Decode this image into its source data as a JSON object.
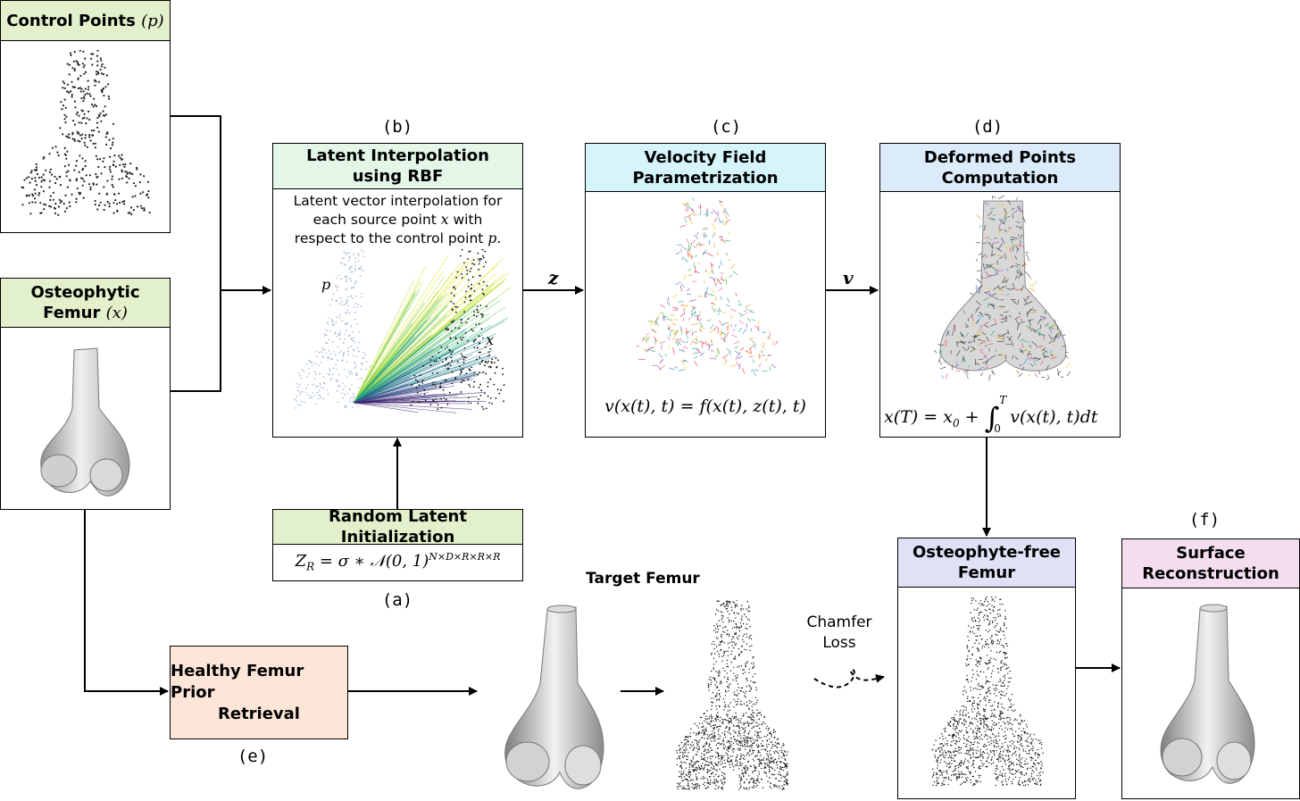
{
  "boxes": {
    "control_points": {
      "title": "Control Points",
      "symbol": "(p)"
    },
    "osteophytic_femur": {
      "title_line1": "Osteophytic",
      "title_line2": "Femur",
      "symbol": "(x)"
    },
    "latent_interp": {
      "title_line1": "Latent Interpolation",
      "title_line2": "using RBF",
      "desc_line1": "Latent vector interpolation for",
      "desc_line2a": "each source point",
      "desc_line2_sym": "x",
      "desc_line2b": "with",
      "desc_line3a": "respect to the control point",
      "desc_line3_sym": "p.",
      "label_p": "p",
      "label_x": "x"
    },
    "velocity": {
      "title_line1": "Velocity Field",
      "title_line2": "Parametrization",
      "equation": "v(x(t), t) = f(x(t), z(t), t)"
    },
    "deformed": {
      "title_line1": "Deformed Points",
      "title_line2": "Computation",
      "equation_lhs": "x(T) = x",
      "equation_sub": "0",
      "equation_plus": " + ",
      "integral_upper": "T",
      "integral_lower": "0",
      "equation_rhs": "v(x(t), t)dt"
    },
    "random_latent": {
      "title": "Random Latent Initialization",
      "equation_base": "Z",
      "equation_sub": "R",
      "equation_mid": " = σ ∗ 𝒩(0, 1)",
      "equation_sup": "N×D×R×R×R"
    },
    "prior": {
      "title_line1": "Healthy Femur Prior",
      "title_line2": "Retrieval"
    },
    "osteo_free": {
      "title_line1": "Osteophyte-free",
      "title_line2": "Femur"
    },
    "surface": {
      "title_line1": "Surface",
      "title_line2": "Reconstruction"
    }
  },
  "step_labels": {
    "a": "(a)",
    "b": "(b)",
    "c": "(c)",
    "d": "(d)",
    "e": "(e)",
    "f": "(f)"
  },
  "arrow_labels": {
    "z": "z",
    "v": "v"
  },
  "target_femur": "Target Femur",
  "chamfer_line1": "Chamfer",
  "chamfer_line2": "Loss",
  "colors": {
    "control_hdr": "#e2f0cb",
    "latent_hdr": "#e3f6e8",
    "velocity_hdr": "#d6f5fb",
    "deformed_hdr": "#dcebfa",
    "osteo_free_hdr": "#dfe1f6",
    "surface_hdr": "#f3ddef",
    "prior_fill": "#fde5d8"
  }
}
